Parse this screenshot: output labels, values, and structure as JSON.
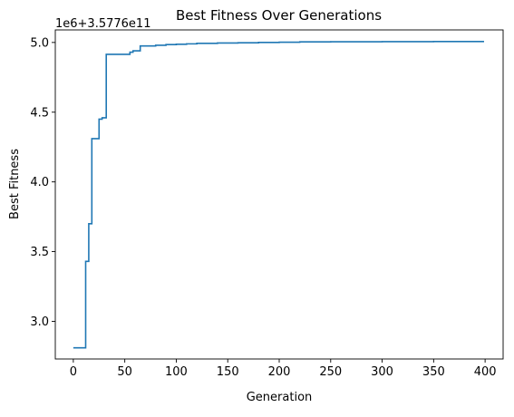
{
  "colors": {
    "line": "#1f77b4",
    "axis": "#000000",
    "background": "#ffffff"
  },
  "chart_data": {
    "type": "line",
    "title": "Best Fitness Over Generations",
    "xlabel": "Generation",
    "ylabel": "Best Fitness",
    "y_offset_label": "1e6+3.5776e11",
    "grid": false,
    "xlim": [
      -17.5,
      417.5
    ],
    "ylim": [
      2.73,
      5.09
    ],
    "x_ticks": [
      0,
      50,
      100,
      150,
      200,
      250,
      300,
      350,
      400
    ],
    "x_tick_labels": [
      "0",
      "50",
      "100",
      "150",
      "200",
      "250",
      "300",
      "350",
      "400"
    ],
    "y_ticks": [
      3.0,
      3.5,
      4.0,
      4.5,
      5.0
    ],
    "y_tick_labels": [
      "3.0",
      "3.5",
      "4.0",
      "4.5",
      "5.0"
    ],
    "series": [
      {
        "step": true,
        "x": [
          0,
          12,
          15,
          18,
          25,
          28,
          32,
          40,
          50,
          55,
          58,
          62,
          65,
          70,
          80,
          90,
          100,
          110,
          120,
          140,
          160,
          180,
          200,
          220,
          250,
          300,
          350,
          399
        ],
        "y": [
          2.81,
          3.43,
          3.7,
          4.31,
          4.45,
          4.46,
          4.915,
          4.915,
          4.915,
          4.93,
          4.94,
          4.94,
          4.975,
          4.975,
          4.98,
          4.985,
          4.987,
          4.99,
          4.994,
          4.996,
          4.998,
          5.0,
          5.002,
          5.004,
          5.005,
          5.006,
          5.007,
          5.007
        ]
      }
    ]
  }
}
